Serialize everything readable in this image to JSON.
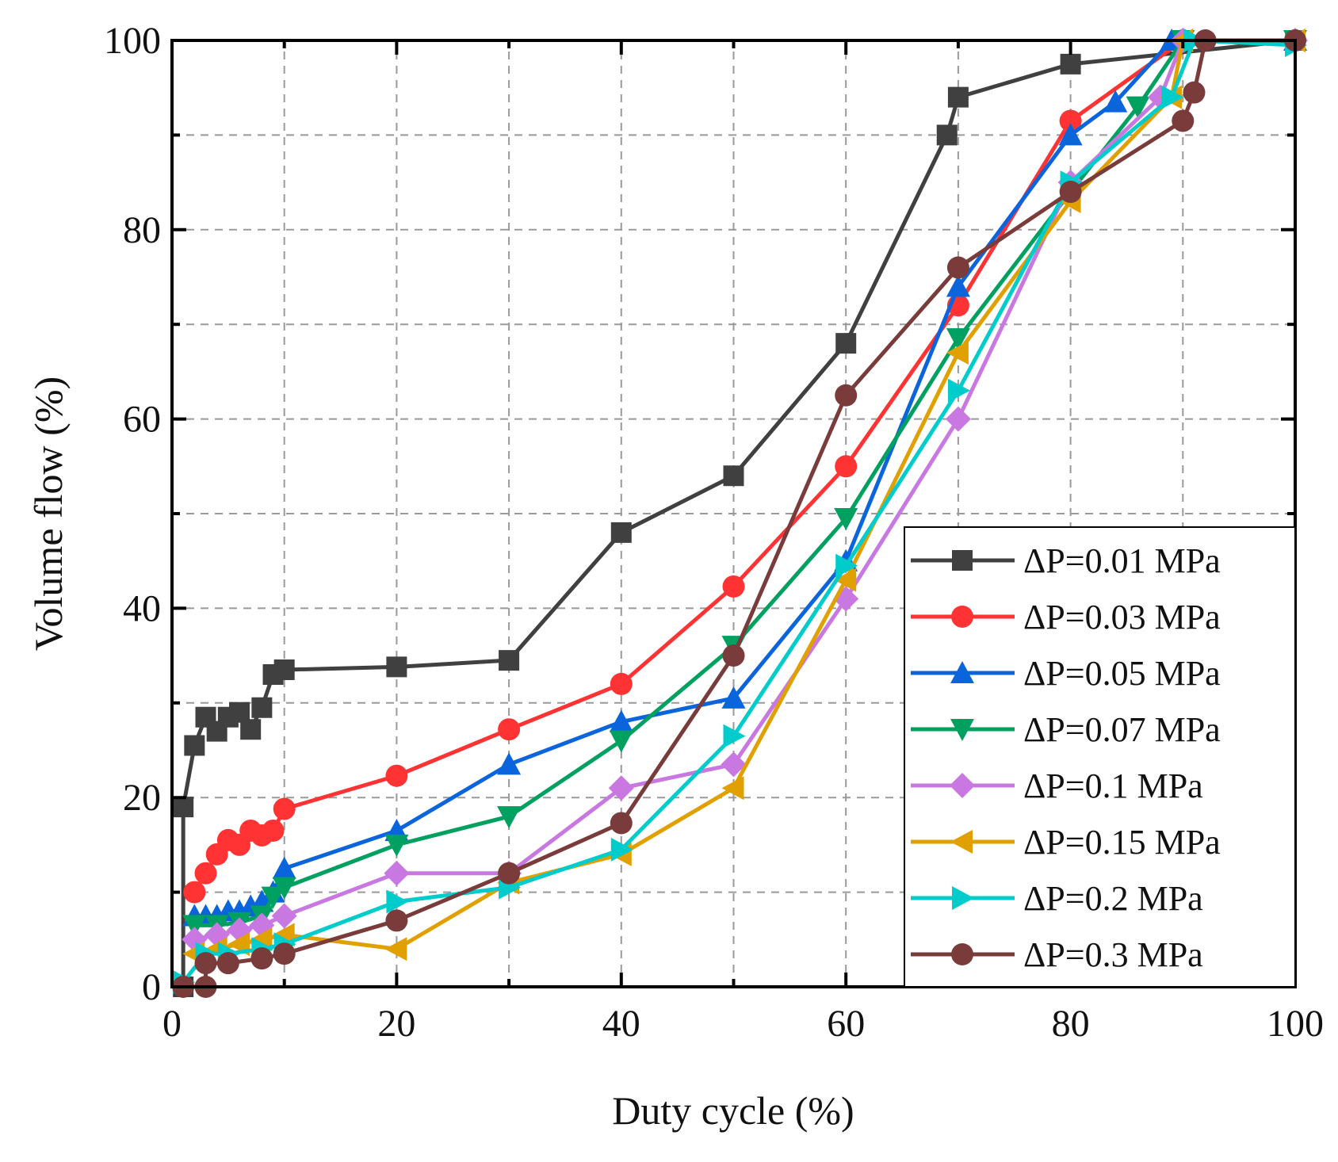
{
  "chart_data": {
    "type": "line",
    "title": "",
    "xlabel": "Duty cycle (%)",
    "ylabel": "Volume flow (%)",
    "xlim": [
      0,
      100
    ],
    "ylim": [
      0,
      100
    ],
    "xticks": [
      0,
      20,
      40,
      60,
      80,
      100
    ],
    "yticks": [
      0,
      20,
      40,
      60,
      80,
      100
    ],
    "grid": true,
    "legend_position": "bottom-right",
    "series": [
      {
        "name": "ΔP=0.01 MPa",
        "color": "#404040",
        "marker": "square",
        "x": [
          1,
          1,
          2,
          3,
          4,
          5,
          6,
          7,
          8,
          9,
          10,
          20,
          30,
          40,
          50,
          60,
          69,
          70,
          80,
          100
        ],
        "y": [
          0,
          19,
          25.5,
          28.5,
          27,
          28.5,
          29,
          27.2,
          29.5,
          33,
          33.5,
          33.8,
          34.5,
          48,
          54,
          68,
          90,
          94,
          97.5,
          100
        ]
      },
      {
        "name": "ΔP=0.03 MPa",
        "color": "#ff3333",
        "marker": "circle",
        "x": [
          2,
          3,
          4,
          5,
          6,
          7,
          8,
          9,
          10,
          20,
          30,
          40,
          50,
          60,
          70,
          80,
          90,
          100
        ],
        "y": [
          10,
          12,
          14,
          15.5,
          15,
          16.5,
          16,
          16.5,
          18.8,
          22.3,
          27.2,
          32,
          42.3,
          55,
          72,
          91.5,
          100,
          100
        ]
      },
      {
        "name": "ΔP=0.05 MPa",
        "color": "#0a64dc",
        "marker": "triangle-up",
        "x": [
          2,
          3,
          4,
          5,
          6,
          7,
          8,
          9,
          10,
          20,
          30,
          40,
          50,
          60,
          70,
          80,
          84,
          89,
          100
        ],
        "y": [
          7.5,
          7.5,
          7.5,
          8,
          8,
          8.5,
          9,
          10,
          12.5,
          16.5,
          23.5,
          28,
          30.5,
          45,
          74,
          90,
          93.5,
          100,
          100
        ]
      },
      {
        "name": "ΔP=0.07 MPa",
        "color": "#00a060",
        "marker": "triangle-down",
        "x": [
          2,
          4,
          6,
          8,
          9,
          10,
          20,
          30,
          40,
          50,
          60,
          70,
          80,
          86,
          90,
          100
        ],
        "y": [
          6.5,
          6.5,
          6.8,
          7.5,
          9.5,
          10.5,
          15,
          18,
          26,
          36,
          49.5,
          68.5,
          84,
          93,
          100,
          100
        ]
      },
      {
        "name": "ΔP=0.1 MPa",
        "color": "#c878e0",
        "marker": "diamond",
        "x": [
          2,
          4,
          6,
          8,
          10,
          20,
          30,
          40,
          50,
          60,
          70,
          80,
          88,
          90,
          100
        ],
        "y": [
          5,
          5.5,
          6,
          6.5,
          7.5,
          12,
          12,
          21,
          23.5,
          41,
          60,
          85,
          94,
          100,
          100
        ]
      },
      {
        "name": "ΔP=0.15 MPa",
        "color": "#e0a000",
        "marker": "triangle-left",
        "x": [
          2,
          4,
          6,
          8,
          10,
          20,
          30,
          40,
          50,
          60,
          70,
          80,
          89,
          90,
          100
        ],
        "y": [
          3.5,
          4,
          4.5,
          5,
          5.5,
          4,
          11,
          14,
          21,
          43,
          67,
          83,
          94,
          100,
          100
        ]
      },
      {
        "name": "ΔP=0.2 MPa",
        "color": "#00cccc",
        "marker": "triangle-right",
        "x": [
          1,
          3,
          5,
          8,
          10,
          20,
          30,
          40,
          50,
          60,
          70,
          80,
          89,
          91,
          100
        ],
        "y": [
          0.5,
          3.5,
          3.5,
          4,
          4.5,
          9,
          10.5,
          14.5,
          26.5,
          44.5,
          63,
          85,
          94,
          100,
          99.5
        ]
      },
      {
        "name": "ΔP=0.3 MPa",
        "color": "#7a3b3b",
        "marker": "circle",
        "x": [
          1,
          3,
          3,
          5,
          8,
          10,
          20,
          30,
          40,
          50,
          60,
          70,
          80,
          90,
          91,
          92,
          100
        ],
        "y": [
          0,
          0,
          2.5,
          2.5,
          3,
          3.5,
          7,
          12,
          17.3,
          35,
          62.5,
          76,
          84,
          91.5,
          94.5,
          100,
          100
        ]
      }
    ]
  }
}
